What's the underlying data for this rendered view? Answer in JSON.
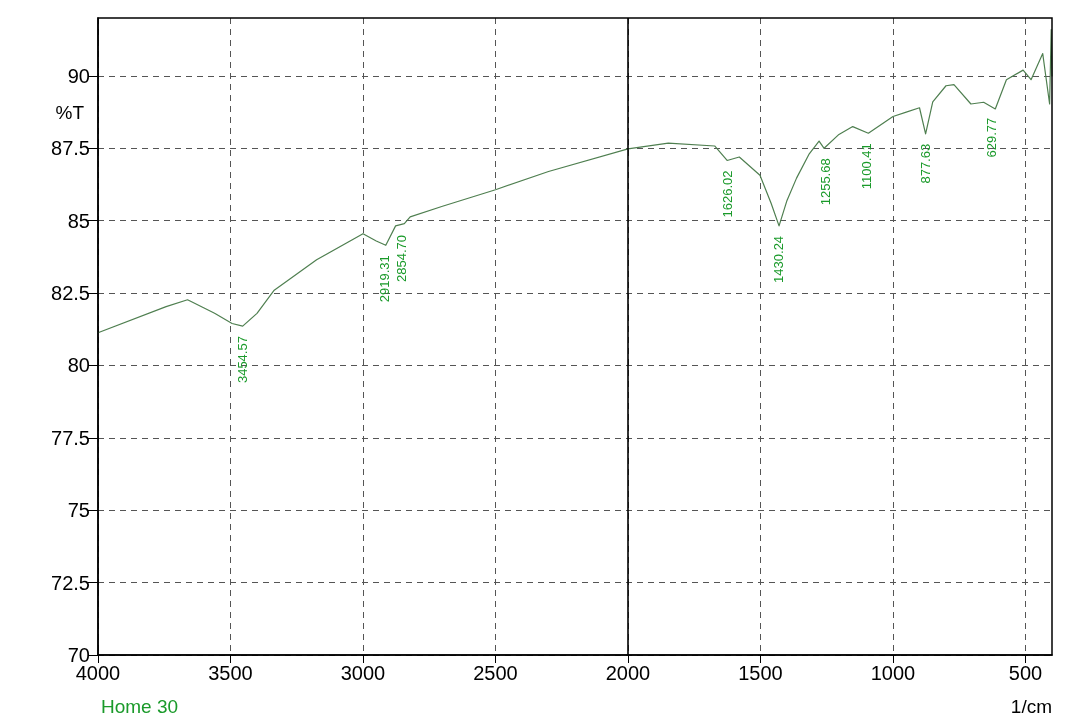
{
  "chart_data": {
    "type": "line",
    "xlabel": "1/cm",
    "ylabel": "%T",
    "xlim": [
      4000,
      400
    ],
    "xticks": [
      4000,
      3500,
      3000,
      2500,
      2000,
      1500,
      1000,
      500
    ],
    "ylim": [
      70,
      92
    ],
    "yticks": [
      70,
      72.5,
      75,
      77.5,
      80,
      82.5,
      85,
      87.5,
      90
    ],
    "grid": true,
    "marker": "none",
    "line_style": "solid",
    "series": [
      {
        "color": "#4f7f50",
        "x": [
          4000,
          3743,
          3662,
          3560,
          3494,
          3454,
          3400,
          3335,
          3175,
          3000,
          2950,
          2914,
          2877,
          2844,
          2822,
          2700,
          2500,
          2300,
          2000,
          1848,
          1673,
          1626,
          1580,
          1502,
          1460,
          1430,
          1400,
          1364,
          1316,
          1279,
          1260,
          1204,
          1152,
          1093,
          1000,
          950,
          900,
          877,
          850,
          800,
          770,
          706,
          658,
          614,
          572,
          509,
          479,
          435,
          424,
          409,
          403,
          400
        ],
        "values": [
          81.13,
          82.03,
          82.27,
          81.8,
          81.45,
          81.36,
          81.8,
          82.6,
          83.65,
          84.55,
          84.3,
          84.15,
          84.82,
          84.9,
          85.13,
          85.5,
          86.07,
          86.7,
          87.48,
          87.68,
          87.58,
          87.08,
          87.2,
          86.57,
          85.6,
          84.82,
          85.7,
          86.47,
          87.31,
          87.75,
          87.5,
          87.98,
          88.25,
          88.02,
          88.6,
          88.75,
          88.9,
          88.0,
          89.1,
          89.66,
          89.7,
          89.03,
          89.09,
          88.86,
          89.87,
          90.2,
          89.87,
          90.77,
          90.03,
          89.03,
          91.6,
          90.0
        ]
      }
    ],
    "ref_lines": [
      {
        "axis": "x",
        "value": 2000,
        "color": "#000000"
      }
    ],
    "annotations": [
      {
        "text": "3454.57",
        "x": 3454.57,
        "y": 81.36
      },
      {
        "text": "2919.31",
        "x": 2919.31,
        "y": 84.15
      },
      {
        "text": "2854.70",
        "x": 2854.7,
        "y": 84.85
      },
      {
        "text": "1626.02",
        "x": 1626.02,
        "y": 87.08
      },
      {
        "text": "1430.24",
        "x": 1430.24,
        "y": 84.82
      },
      {
        "text": "1255.68",
        "x": 1255.68,
        "y": 87.5
      },
      {
        "text": "1100.41",
        "x": 1100.41,
        "y": 88.02
      },
      {
        "text": "877.63",
        "x": 877.63,
        "y": 88.0
      },
      {
        "text": "629.77",
        "x": 629.77,
        "y": 88.9
      },
      "Home 30"
    ]
  }
}
